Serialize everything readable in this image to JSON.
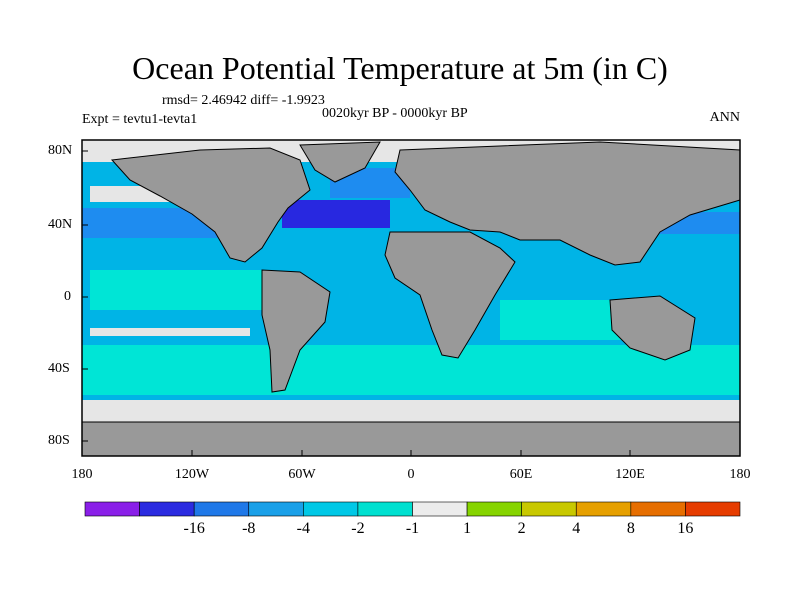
{
  "title": "Ocean Potential Temperature at 5m (in C)",
  "stats": "rmsd= 2.46942 diff= -1.9923",
  "subtitle_left": "Expt = tevtu1-tevta1",
  "subtitle_center": "0020kyr BP - 0000kyr BP",
  "subtitle_right": "ANN",
  "lat_labels": [
    "80N",
    "40N",
    "0",
    "40S",
    "80S"
  ],
  "lon_labels": [
    "180",
    "120W",
    "60W",
    "0",
    "60E",
    "120E",
    "180"
  ],
  "colors": {
    "land": "#999999",
    "ocean_default": "#00b4e6",
    "light": "#00e5d6",
    "mid": "#1e8cf0",
    "deep": "#2828e0",
    "neutral": "#e6e6e6",
    "green": "#7fd000"
  },
  "colorbar": {
    "colors": [
      "#8a1fe8",
      "#2b2be0",
      "#1f78e8",
      "#1aa0e8",
      "#00c8e6",
      "#00e0d0",
      "#ececec",
      "#86d400",
      "#c8c800",
      "#e6a000",
      "#e66e00",
      "#e63c00"
    ],
    "labels": [
      "-16",
      "-8",
      "-4",
      "-2",
      "-1",
      "1",
      "2",
      "4",
      "8",
      "16"
    ]
  }
}
